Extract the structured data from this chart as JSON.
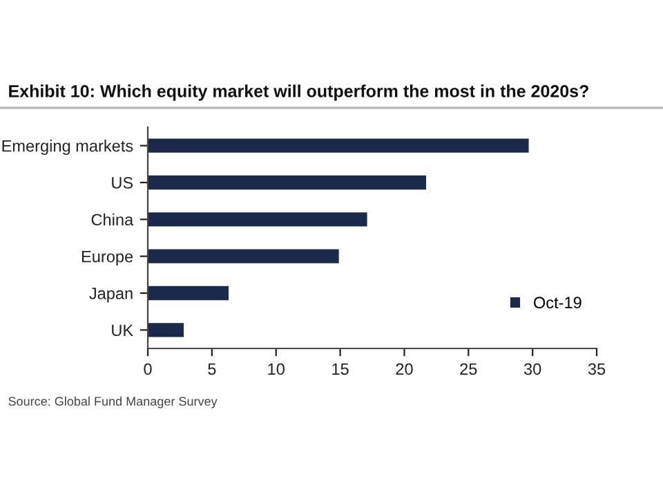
{
  "chart_data": {
    "type": "bar",
    "orientation": "horizontal",
    "title": "Exhibit 10: Which equity market will outperform the most in the 2020s?",
    "categories": [
      "Emerging markets",
      "US",
      "China",
      "Europe",
      "Japan",
      "UK"
    ],
    "series": [
      {
        "name": "Oct-19",
        "color": "#1b2a4a",
        "values": [
          29.7,
          21.7,
          17.1,
          14.9,
          6.3,
          2.8
        ]
      }
    ],
    "xlim": [
      0,
      35
    ],
    "xticks": [
      0,
      5,
      10,
      15,
      20,
      25,
      30,
      35
    ],
    "grid": false,
    "legend": "bottom right",
    "annotations": [
      "Source: Global Fund Manager Survey"
    ]
  }
}
